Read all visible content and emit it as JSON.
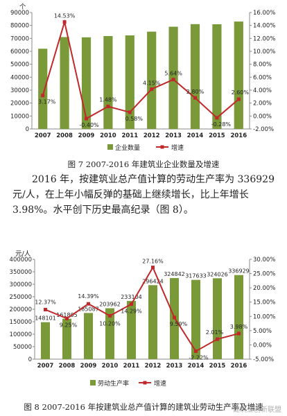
{
  "chart_data": [
    {
      "type": "bar+line",
      "categories": [
        "2007",
        "2008",
        "2009",
        "2010",
        "2011",
        "2012",
        "2013",
        "2014",
        "2015",
        "2016"
      ],
      "series": [
        {
          "name": "企业数量",
          "type": "bar",
          "axis": "left",
          "values": [
            62000,
            71000,
            70800,
            71800,
            72300,
            75200,
            79000,
            81000,
            80900,
            83000
          ]
        },
        {
          "name": "增速",
          "type": "line",
          "axis": "right",
          "values": [
            3.17,
            14.53,
            -0.4,
            1.48,
            0.58,
            4.15,
            5.64,
            2.8,
            -0.28,
            2.6
          ]
        }
      ],
      "line_labels": [
        "3.17%",
        "14.53%",
        "-0.40%",
        "1.48%",
        "0.58%",
        "4.15%",
        "5.64%",
        "2.80%",
        "-0.28%",
        "2.60%"
      ],
      "bar_labels": [],
      "ylim_left": [
        0,
        90000
      ],
      "yticks_left": [
        "0",
        "10000",
        "20000",
        "30000",
        "40000",
        "50000",
        "60000",
        "70000",
        "80000",
        "90000"
      ],
      "ylim_right": [
        -2,
        16
      ],
      "yticks_right": [
        "-2.00%",
        "0.00%",
        "2.00%",
        "4.00%",
        "6.00%",
        "8.00%",
        "10.00%",
        "12.00%",
        "14.00%",
        "16.00%"
      ],
      "ylabel_left": "个",
      "legend": {
        "position": "bottom"
      },
      "grid": false,
      "colors": {
        "bar": "#7a9a3a",
        "line": "#c0282a"
      }
    },
    {
      "type": "bar+line",
      "categories": [
        "2007",
        "2008",
        "2009",
        "2010",
        "2011",
        "2012",
        "2013",
        "2014",
        "2015",
        "2016"
      ],
      "series": [
        {
          "name": "劳动生产率",
          "type": "bar",
          "axis": "left",
          "values": [
            148101,
            161805,
            185087,
            203962,
            233104,
            296424,
            324842,
            317633,
            324026,
            336929
          ]
        },
        {
          "name": "增速",
          "type": "line",
          "axis": "right",
          "values": [
            12.37,
            9.25,
            14.39,
            10.2,
            14.29,
            27.16,
            9.59,
            -2.22,
            2.01,
            3.98
          ]
        }
      ],
      "bar_labels": [
        "148101",
        "161805",
        "185087",
        "203962",
        "233104",
        "296424",
        "324842",
        "317633",
        "324026",
        "336929"
      ],
      "line_labels": [
        "12.37%",
        "9.25%",
        "14.39%",
        "10.20%",
        "14.29%",
        "27.16%",
        "9.59%",
        "-2.22%",
        "2.01%",
        "3.98%"
      ],
      "ylim_left": [
        0,
        400000
      ],
      "yticks_left": [
        "0",
        "50000",
        "100000",
        "150000",
        "200000",
        "250000",
        "300000",
        "350000",
        "400000"
      ],
      "ylim_right": [
        -5,
        30
      ],
      "yticks_right": [
        "-5.00%",
        "0.00%",
        "5.00%",
        "10.00%",
        "15.00%",
        "20.00%",
        "25.00%",
        "30.00%"
      ],
      "ylabel_left": "元/人",
      "legend": {
        "position": "bottom"
      },
      "grid": false,
      "colors": {
        "bar": "#7a9a3a",
        "line": "#c0282a"
      }
    }
  ],
  "caption1": "图 7    2007-2016 年建筑业企业数量及增速",
  "paragraph": "2016 年，按建筑业总产值计算的劳动生产率为 336929 元/人，在上年小幅反弹的基础上继续增长，比上年增长 3.98%。水平创下历史最高纪录（图 8）。",
  "caption2": "图 8    2007-2016 年按建筑业总产值计算的建筑业劳动生产率及增速",
  "watermark": "建筑业创新联盟"
}
